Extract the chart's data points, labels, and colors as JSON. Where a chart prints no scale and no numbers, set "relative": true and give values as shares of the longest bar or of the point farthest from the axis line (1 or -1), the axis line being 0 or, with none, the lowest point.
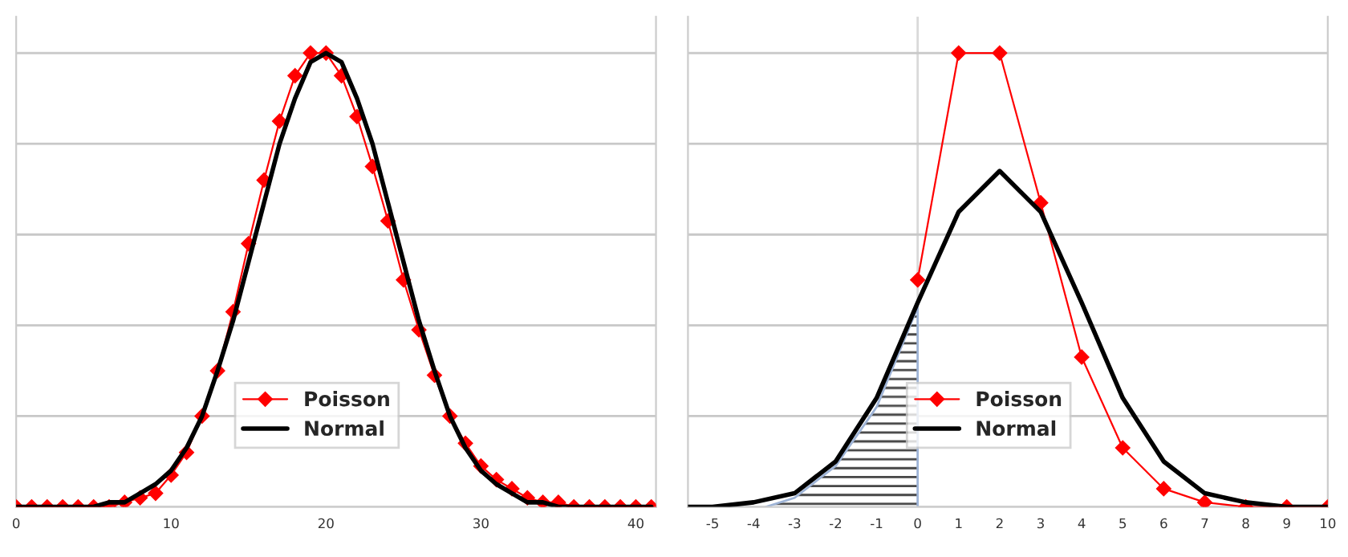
{
  "chart_data": [
    {
      "type": "line",
      "relative": true,
      "x": [
        0,
        1,
        2,
        3,
        4,
        5,
        6,
        7,
        8,
        9,
        10,
        11,
        12,
        13,
        14,
        15,
        16,
        17,
        18,
        19,
        20,
        21,
        22,
        23,
        24,
        25,
        26,
        27,
        28,
        29,
        30,
        31,
        32,
        33,
        34,
        35,
        36,
        37,
        38,
        39,
        40,
        41
      ],
      "xlim": [
        0,
        41.3
      ],
      "xticks": [
        0,
        10,
        20,
        30,
        40
      ],
      "grid": "y",
      "legend": "bottom",
      "series": [
        {
          "name": "Poisson",
          "color": "#ff0000",
          "marker": "diamond",
          "values": [
            0,
            0,
            0,
            0,
            0,
            0,
            0,
            0.01,
            0.02,
            0.03,
            0.07,
            0.12,
            0.2,
            0.3,
            0.43,
            0.58,
            0.72,
            0.85,
            0.95,
            1,
            1,
            0.95,
            0.86,
            0.75,
            0.63,
            0.5,
            0.39,
            0.29,
            0.2,
            0.14,
            0.09,
            0.06,
            0.04,
            0.02,
            0.01,
            0.01,
            0,
            0,
            0,
            0,
            0,
            0
          ]
        },
        {
          "name": "Normal",
          "color": "#000000",
          "values": [
            0,
            0,
            0,
            0,
            0,
            0,
            0.01,
            0.01,
            0.03,
            0.05,
            0.08,
            0.13,
            0.2,
            0.3,
            0.41,
            0.54,
            0.67,
            0.8,
            0.9,
            0.98,
            1,
            0.98,
            0.9,
            0.8,
            0.67,
            0.54,
            0.41,
            0.3,
            0.2,
            0.13,
            0.08,
            0.05,
            0.03,
            0.01,
            0.01,
            0,
            0,
            0,
            0,
            0,
            0,
            0
          ]
        }
      ]
    },
    {
      "type": "line",
      "relative": true,
      "xlim": [
        -5.6,
        10
      ],
      "xticks": [
        -5,
        -4,
        -3,
        -2,
        -1,
        0,
        1,
        2,
        3,
        4,
        5,
        6,
        7,
        8,
        9,
        10
      ],
      "grid": "y",
      "legend": "bottom",
      "ref_lines": [
        {
          "axis": "x",
          "value": 0,
          "color": "#d9d9d9"
        }
      ],
      "series": [
        {
          "type": "area",
          "color": "#9db3d6",
          "x": [
            -3.7,
            -3,
            -2,
            -1,
            0
          ],
          "values": [
            0,
            0.02,
            0.09,
            0.22,
            0.44
          ]
        },
        {
          "name": "Poisson",
          "color": "#ff0000",
          "marker": "diamond",
          "x": [
            0,
            1,
            2,
            3,
            4,
            5,
            6,
            7,
            8,
            9,
            10
          ],
          "values": [
            0.5,
            1,
            1,
            0.67,
            0.33,
            0.13,
            0.04,
            0.01,
            0,
            0,
            0
          ]
        },
        {
          "name": "Normal",
          "color": "#000000",
          "x": [
            -5.6,
            -5,
            -4,
            -3,
            -2,
            -1,
            0,
            1,
            2,
            3,
            4,
            5,
            6,
            7,
            8,
            9,
            10
          ],
          "values": [
            0,
            0,
            0.01,
            0.03,
            0.1,
            0.24,
            0.45,
            0.65,
            0.74,
            0.65,
            0.45,
            0.24,
            0.1,
            0.03,
            0.01,
            0,
            0
          ]
        }
      ]
    }
  ]
}
